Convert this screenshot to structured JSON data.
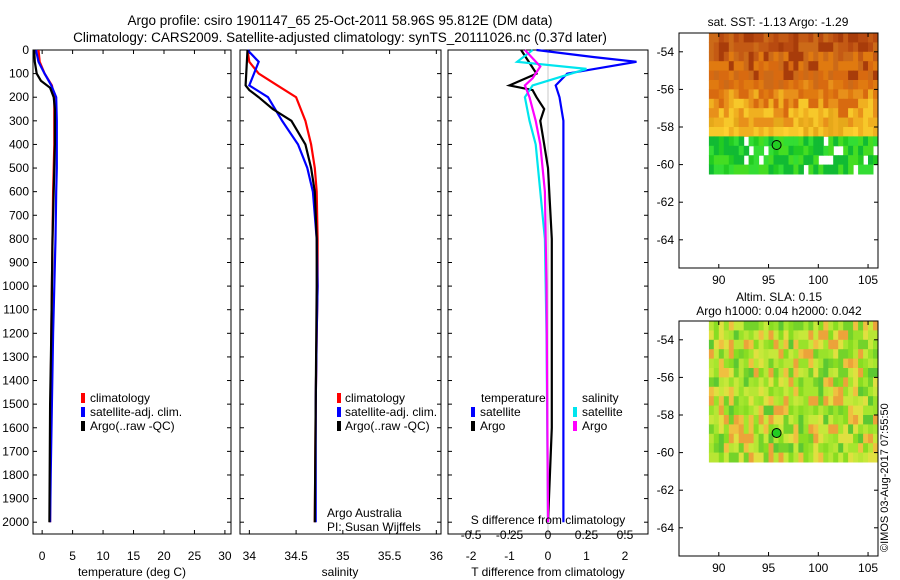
{
  "header": {
    "line1": "Argo profile: csiro 1901147_65 25-Oct-2011 58.96S 95.812E (DM data)",
    "line2": "Climatology: CARS2009. Satellite-adjusted climatology: synTS_20111026.nc (0.37d later)"
  },
  "depth_ticks": [
    "0",
    "100",
    "200",
    "300",
    "400",
    "500",
    "600",
    "700",
    "800",
    "900",
    "1000",
    "1100",
    "1200",
    "1300",
    "1400",
    "1500",
    "1600",
    "1700",
    "1800",
    "1900",
    "2000"
  ],
  "colors": {
    "climatology": "#ff0000",
    "satellite": "#0000ff",
    "argo": "#000000",
    "sat_salinity": "#00e5ee",
    "argo_salinity": "#ff00ff"
  },
  "panel_temperature": {
    "xlabel": "temperature (deg C)",
    "xticks": [
      "0",
      "5",
      "10",
      "15",
      "20",
      "25",
      "30"
    ],
    "legend": [
      "climatology",
      "satellite-adj. clim.",
      "Argo(..raw -QC)"
    ]
  },
  "panel_salinity": {
    "xlabel": "salinity",
    "xticks": [
      "34",
      "34.5",
      "35",
      "35.5",
      "36"
    ],
    "legend": [
      "climatology",
      "satellite-adj. clim.",
      "Argo(..raw -QC)"
    ],
    "note1": "Argo Australia",
    "note2": "PI: Susan Wijffels"
  },
  "panel_difference": {
    "xlabel": "T difference from climatology",
    "xticks": [
      "-2",
      "-1",
      "0",
      "1",
      "2"
    ],
    "top_label": "S difference from climatology",
    "top_ticks": [
      "-0.5",
      "-0.25",
      "0",
      "0.25",
      "0.5"
    ],
    "legend_t_title": "temperature",
    "legend_s_title": "salinity",
    "legend_t": [
      "satellite",
      "Argo"
    ],
    "legend_s": [
      "satellite",
      "Argo"
    ]
  },
  "map_sst": {
    "title": "sat. SST: -1.13 Argo: -1.29",
    "yticks": [
      "-54",
      "-56",
      "-58",
      "-60",
      "-62",
      "-64"
    ],
    "xticks": [
      "90",
      "95",
      "100",
      "105"
    ]
  },
  "map_sla": {
    "title1": "Altim. SLA: 0.15",
    "title2": "Argo h1000: 0.04 h2000: 0.042",
    "yticks": [
      "-54",
      "-56",
      "-58",
      "-60",
      "-62",
      "-64"
    ],
    "xticks": [
      "90",
      "95",
      "100",
      "105"
    ]
  },
  "credit": "©IMOS 03-Aug-2017 07:55:50",
  "chart_data": [
    {
      "type": "line",
      "title": "",
      "xlabel": "temperature (deg C)",
      "ylabel": "",
      "xlim": [
        -1.5,
        31
      ],
      "ylim": [
        2050,
        0
      ],
      "series": [
        {
          "name": "climatology",
          "x": [
            -0.6,
            -0.4,
            0.4,
            1.6,
            2.0,
            2.0,
            2.0,
            1.9,
            1.8,
            1.7,
            1.6,
            1.5,
            1.4,
            1.3,
            1.3
          ],
          "y": [
            0,
            50,
            100,
            150,
            200,
            300,
            400,
            500,
            600,
            800,
            1000,
            1200,
            1500,
            1800,
            2000
          ]
        },
        {
          "name": "satellite-adj. clim.",
          "x": [
            -1.0,
            -0.6,
            0.4,
            1.5,
            2.3,
            2.4,
            2.4,
            2.4,
            2.3,
            2.2,
            2.0,
            1.8,
            1.6,
            1.4,
            1.3
          ],
          "y": [
            0,
            50,
            100,
            150,
            200,
            300,
            400,
            500,
            600,
            800,
            1000,
            1200,
            1500,
            1800,
            2000
          ]
        },
        {
          "name": "Argo(..raw -QC)",
          "x": [
            -1.3,
            -1.2,
            -0.9,
            -0.2,
            1.3,
            1.9,
            2.1,
            2.1,
            2.1,
            2.0,
            1.9,
            1.7,
            1.6,
            1.5,
            1.3,
            1.2
          ],
          "y": [
            0,
            50,
            100,
            130,
            160,
            200,
            250,
            300,
            400,
            500,
            600,
            800,
            1000,
            1200,
            1500,
            2000
          ]
        }
      ]
    },
    {
      "type": "line",
      "title": "",
      "xlabel": "salinity",
      "ylabel": "",
      "xlim": [
        33.9,
        36.05
      ],
      "ylim": [
        2050,
        0
      ],
      "series": [
        {
          "name": "climatology",
          "x": [
            33.98,
            34.0,
            34.1,
            34.3,
            34.5,
            34.6,
            34.66,
            34.7,
            34.72,
            34.73,
            34.73,
            34.72,
            34.71,
            34.7
          ],
          "y": [
            0,
            50,
            100,
            150,
            200,
            300,
            400,
            500,
            600,
            800,
            1000,
            1200,
            1500,
            2000
          ]
        },
        {
          "name": "satellite-adj. clim.",
          "x": [
            33.98,
            34.1,
            34.05,
            34.0,
            34.2,
            34.35,
            34.52,
            34.62,
            34.68,
            34.72,
            34.73,
            34.72,
            34.71,
            34.71
          ],
          "y": [
            0,
            50,
            100,
            150,
            200,
            300,
            400,
            500,
            600,
            800,
            1000,
            1200,
            1500,
            2000
          ]
        },
        {
          "name": "Argo(..raw -QC)",
          "x": [
            33.98,
            33.96,
            34.0,
            34.1,
            34.25,
            34.45,
            34.6,
            34.66,
            34.7,
            34.72,
            34.72,
            34.71,
            34.7
          ],
          "y": [
            0,
            150,
            170,
            200,
            250,
            300,
            400,
            500,
            600,
            800,
            1000,
            1500,
            2000
          ]
        }
      ]
    },
    {
      "type": "line",
      "title": "",
      "xlabel": "T difference from climatology",
      "ylabel": "",
      "xlim": [
        -2.6,
        2.6
      ],
      "ylim": [
        2050,
        0
      ],
      "top_axis": {
        "label": "S difference from climatology",
        "xlim": [
          -0.65,
          0.65
        ]
      },
      "series": [
        {
          "name": "temperature satellite",
          "x": [
            -0.3,
            1.2,
            2.3,
            0.5,
            0.2,
            0.3,
            0.4,
            0.4,
            0.4,
            0.4,
            0.4,
            0.4,
            0.4
          ],
          "y": [
            0,
            30,
            50,
            100,
            150,
            200,
            300,
            400,
            500,
            800,
            1200,
            1600,
            2000
          ]
        },
        {
          "name": "temperature Argo",
          "x": [
            -0.7,
            -0.3,
            -1.0,
            -0.4,
            -0.3,
            -0.1,
            -0.2,
            -0.1,
            0.0,
            0.1,
            0.1,
            0.1,
            0.0
          ],
          "y": [
            0,
            100,
            150,
            170,
            200,
            250,
            300,
            400,
            500,
            800,
            1200,
            1600,
            2000
          ]
        },
        {
          "name": "salinity satellite",
          "x": [
            -0.1,
            -0.2,
            0.25,
            -0.1,
            -0.15,
            -0.12,
            -0.08,
            -0.05,
            -0.02,
            -0.01,
            0.0
          ],
          "y": [
            0,
            50,
            80,
            150,
            200,
            300,
            400,
            600,
            800,
            1200,
            2000
          ]
        },
        {
          "name": "salinity Argo",
          "x": [
            -0.15,
            -0.05,
            -0.1,
            -0.15,
            -0.12,
            -0.08,
            -0.05,
            -0.02,
            -0.01,
            0.0
          ],
          "y": [
            0,
            70,
            120,
            150,
            200,
            300,
            400,
            600,
            1000,
            2000
          ]
        }
      ]
    },
    {
      "type": "heatmap",
      "title": "sat. SST: -1.13 Argo: -1.29",
      "xlim": [
        86,
        106
      ],
      "ylim": [
        -65.5,
        -53
      ],
      "xticks": [
        90,
        95,
        100,
        105
      ],
      "yticks": [
        -54,
        -56,
        -58,
        -60,
        -62,
        -64
      ],
      "data_extent": {
        "lon": [
          89,
          106
        ],
        "lat": [
          -60.4,
          -53
        ]
      },
      "argo_position": {
        "lon": 95.812,
        "lat": -58.96
      }
    },
    {
      "type": "heatmap",
      "title": "Altim. SLA: 0.15  Argo h1000: 0.04 h2000: 0.042",
      "xlim": [
        86,
        106
      ],
      "ylim": [
        -65.5,
        -53
      ],
      "xticks": [
        90,
        95,
        100,
        105
      ],
      "yticks": [
        -54,
        -56,
        -58,
        -60,
        -62,
        -64
      ],
      "data_extent": {
        "lon": [
          89,
          106
        ],
        "lat": [
          -60.2,
          -53
        ]
      },
      "argo_position": {
        "lon": 95.812,
        "lat": -58.96
      }
    }
  ]
}
